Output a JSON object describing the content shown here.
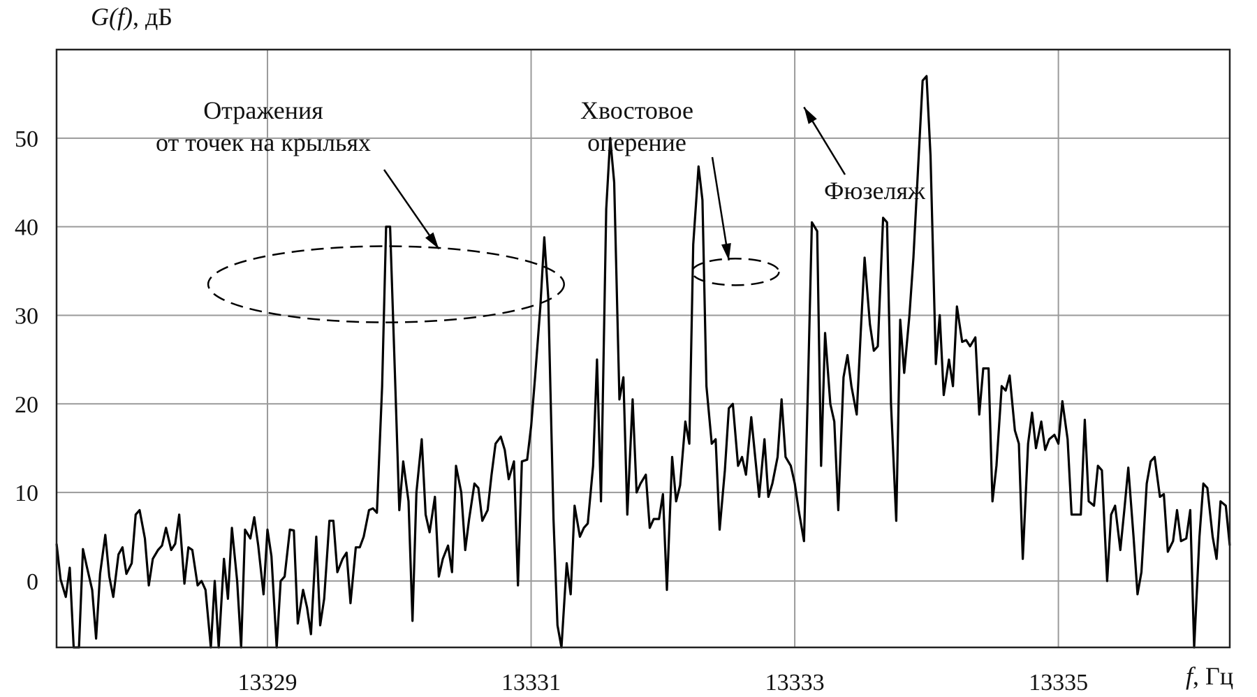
{
  "chart_data": {
    "type": "line",
    "title": "",
    "ylabel_italic": "G(f)",
    "ylabel_rest": ", дБ",
    "xlabel_italic": "f",
    "xlabel_rest": ",  Гц",
    "xlim": [
      13327.4,
      13336.3
    ],
    "ylim": [
      -7.5,
      60
    ],
    "x_ticks": [
      13329,
      13331,
      13333,
      13335
    ],
    "x_tick_labels": [
      "13329",
      "13331",
      "13333",
      "13335"
    ],
    "x_grid_at": [
      13329,
      13331,
      13333,
      13335
    ],
    "y_ticks": [
      0,
      10,
      20,
      30,
      40,
      50
    ],
    "y_tick_labels": [
      "0",
      "10",
      "20",
      "30",
      "40",
      "50"
    ],
    "grid": true,
    "annotations": [
      {
        "id": "wings",
        "lines": [
          "Отражения",
          "от точек на крыльях"
        ]
      },
      {
        "id": "tail",
        "lines": [
          "Хвостовое",
          "оперение"
        ]
      },
      {
        "id": "fuselage",
        "lines": [
          "Фюзеляж"
        ]
      }
    ],
    "annotation_targets": {
      "wings": {
        "x": 13330.3,
        "y": 37.5
      },
      "tail": {
        "x": 13332.5,
        "y": 36.2
      },
      "fuselage": {
        "x": 13333.07,
        "y": 53.5
      }
    },
    "highlight_ellipses": [
      {
        "id": "wings-ellipse",
        "cx": 13329.9,
        "cy": 33.5,
        "rx": 1.35,
        "ry": 4.3
      },
      {
        "id": "tail-ellipse",
        "cx": 13332.55,
        "cy": 34.9,
        "rx": 0.33,
        "ry": 1.5
      }
    ],
    "series": [
      {
        "values": [
          [
            13327.4,
            4.2
          ],
          [
            13327.43,
            0.2
          ],
          [
            13327.47,
            -1.8
          ],
          [
            13327.5,
            1.5
          ],
          [
            13327.53,
            -7.5
          ],
          [
            13327.57,
            -7.5
          ],
          [
            13327.6,
            3.6
          ],
          [
            13327.63,
            1.6
          ],
          [
            13327.67,
            -1.0
          ],
          [
            13327.7,
            -6.5
          ],
          [
            13327.73,
            0.8
          ],
          [
            13327.77,
            5.2
          ],
          [
            13327.8,
            0.5
          ],
          [
            13327.83,
            -1.8
          ],
          [
            13327.87,
            3.0
          ],
          [
            13327.9,
            3.8
          ],
          [
            13327.93,
            0.8
          ],
          [
            13327.97,
            2.0
          ],
          [
            13328.0,
            7.5
          ],
          [
            13328.03,
            8.0
          ],
          [
            13328.07,
            4.8
          ],
          [
            13328.1,
            -0.5
          ],
          [
            13328.13,
            2.5
          ],
          [
            13328.17,
            3.5
          ],
          [
            13328.2,
            4.0
          ],
          [
            13328.23,
            6.0
          ],
          [
            13328.27,
            3.5
          ],
          [
            13328.3,
            4.2
          ],
          [
            13328.33,
            7.5
          ],
          [
            13328.37,
            -0.3
          ],
          [
            13328.4,
            3.8
          ],
          [
            13328.43,
            3.5
          ],
          [
            13328.47,
            -0.5
          ],
          [
            13328.5,
            0.0
          ],
          [
            13328.53,
            -1.0
          ],
          [
            13328.57,
            -7.5
          ],
          [
            13328.6,
            0.0
          ],
          [
            13328.63,
            -7.5
          ],
          [
            13328.67,
            2.5
          ],
          [
            13328.7,
            -2.0
          ],
          [
            13328.73,
            6.0
          ],
          [
            13328.77,
            0.0
          ],
          [
            13328.8,
            -7.5
          ],
          [
            13328.83,
            5.8
          ],
          [
            13328.87,
            4.8
          ],
          [
            13328.9,
            7.2
          ],
          [
            13328.93,
            4.0
          ],
          [
            13328.97,
            -1.5
          ],
          [
            13329.0,
            5.8
          ],
          [
            13329.03,
            2.8
          ],
          [
            13329.07,
            -7.5
          ],
          [
            13329.1,
            0.0
          ],
          [
            13329.13,
            0.5
          ],
          [
            13329.17,
            5.8
          ],
          [
            13329.2,
            5.7
          ],
          [
            13329.23,
            -4.8
          ],
          [
            13329.27,
            -1.0
          ],
          [
            13329.3,
            -3.0
          ],
          [
            13329.33,
            -6.0
          ],
          [
            13329.37,
            5.0
          ],
          [
            13329.4,
            -5.0
          ],
          [
            13329.43,
            -2.0
          ],
          [
            13329.47,
            6.8
          ],
          [
            13329.5,
            6.8
          ],
          [
            13329.53,
            1.0
          ],
          [
            13329.57,
            2.5
          ],
          [
            13329.6,
            3.2
          ],
          [
            13329.63,
            -2.5
          ],
          [
            13329.67,
            3.8
          ],
          [
            13329.7,
            3.8
          ],
          [
            13329.73,
            5.0
          ],
          [
            13329.77,
            8.0
          ],
          [
            13329.8,
            8.2
          ],
          [
            13329.83,
            7.7
          ],
          [
            13329.87,
            22.0
          ],
          [
            13329.9,
            40.0
          ],
          [
            13329.93,
            40.0
          ],
          [
            13329.97,
            22.0
          ],
          [
            13330.0,
            8.0
          ],
          [
            13330.03,
            13.5
          ],
          [
            13330.07,
            9.0
          ],
          [
            13330.1,
            -4.5
          ],
          [
            13330.13,
            10.0
          ],
          [
            13330.17,
            16.0
          ],
          [
            13330.2,
            7.5
          ],
          [
            13330.23,
            5.5
          ],
          [
            13330.27,
            9.5
          ],
          [
            13330.3,
            0.5
          ],
          [
            13330.33,
            2.5
          ],
          [
            13330.37,
            4.0
          ],
          [
            13330.4,
            1.0
          ],
          [
            13330.43,
            13.0
          ],
          [
            13330.47,
            10.0
          ],
          [
            13330.5,
            3.5
          ],
          [
            13330.53,
            7.0
          ],
          [
            13330.57,
            11.0
          ],
          [
            13330.6,
            10.5
          ],
          [
            13330.63,
            6.8
          ],
          [
            13330.67,
            8.0
          ],
          [
            13330.7,
            12.0
          ],
          [
            13330.73,
            15.5
          ],
          [
            13330.77,
            16.3
          ],
          [
            13330.8,
            14.8
          ],
          [
            13330.83,
            11.5
          ],
          [
            13330.87,
            13.5
          ],
          [
            13330.9,
            -0.5
          ],
          [
            13330.93,
            13.5
          ],
          [
            13330.97,
            13.7
          ],
          [
            13331.0,
            17.5
          ],
          [
            13331.03,
            23.0
          ],
          [
            13331.07,
            31.0
          ],
          [
            13331.1,
            38.8
          ],
          [
            13331.13,
            32.0
          ],
          [
            13331.17,
            7.0
          ],
          [
            13331.2,
            -5.0
          ],
          [
            13331.23,
            -7.5
          ],
          [
            13331.27,
            2.0
          ],
          [
            13331.3,
            -1.5
          ],
          [
            13331.33,
            8.5
          ],
          [
            13331.37,
            5.0
          ],
          [
            13331.4,
            6.0
          ],
          [
            13331.43,
            6.5
          ],
          [
            13331.47,
            13.0
          ],
          [
            13331.5,
            25.0
          ],
          [
            13331.53,
            9.0
          ],
          [
            13331.57,
            42.0
          ],
          [
            13331.6,
            50.0
          ],
          [
            13331.63,
            45.0
          ],
          [
            13331.67,
            20.5
          ],
          [
            13331.7,
            23.0
          ],
          [
            13331.73,
            7.5
          ],
          [
            13331.77,
            20.5
          ],
          [
            13331.8,
            10.0
          ],
          [
            13331.83,
            11.0
          ],
          [
            13331.87,
            12.0
          ],
          [
            13331.9,
            6.0
          ],
          [
            13331.93,
            7.0
          ],
          [
            13331.97,
            7.0
          ],
          [
            13332.0,
            9.8
          ],
          [
            13332.03,
            -1.0
          ],
          [
            13332.07,
            14.0
          ],
          [
            13332.1,
            9.0
          ],
          [
            13332.13,
            10.8
          ],
          [
            13332.17,
            18.0
          ],
          [
            13332.2,
            15.5
          ],
          [
            13332.23,
            38.0
          ],
          [
            13332.27,
            46.8
          ],
          [
            13332.3,
            43.0
          ],
          [
            13332.33,
            22.0
          ],
          [
            13332.37,
            15.5
          ],
          [
            13332.4,
            16.0
          ],
          [
            13332.43,
            5.8
          ],
          [
            13332.47,
            12.5
          ],
          [
            13332.5,
            19.5
          ],
          [
            13332.53,
            20.0
          ],
          [
            13332.57,
            13.0
          ],
          [
            13332.6,
            14.0
          ],
          [
            13332.63,
            12.0
          ],
          [
            13332.67,
            18.5
          ],
          [
            13332.7,
            14.0
          ],
          [
            13332.73,
            9.5
          ],
          [
            13332.77,
            16.0
          ],
          [
            13332.8,
            9.5
          ],
          [
            13332.83,
            11.0
          ],
          [
            13332.87,
            14.0
          ],
          [
            13332.9,
            20.5
          ],
          [
            13332.93,
            14.0
          ],
          [
            13332.97,
            13.0
          ],
          [
            13333.0,
            11.0
          ],
          [
            13333.03,
            8.0
          ],
          [
            13333.07,
            4.5
          ],
          [
            13333.1,
            22.0
          ],
          [
            13333.13,
            40.5
          ],
          [
            13333.17,
            39.5
          ],
          [
            13333.2,
            13.0
          ],
          [
            13333.23,
            28.0
          ],
          [
            13333.27,
            20.0
          ],
          [
            13333.3,
            18.0
          ],
          [
            13333.33,
            8.0
          ],
          [
            13333.37,
            23.0
          ],
          [
            13333.4,
            25.5
          ],
          [
            13333.43,
            22.0
          ],
          [
            13333.47,
            18.8
          ],
          [
            13333.5,
            28.0
          ],
          [
            13333.53,
            36.5
          ],
          [
            13333.57,
            29.0
          ],
          [
            13333.6,
            26.0
          ],
          [
            13333.63,
            26.5
          ],
          [
            13333.67,
            41.0
          ],
          [
            13333.7,
            40.5
          ],
          [
            13333.73,
            20.0
          ],
          [
            13333.77,
            6.8
          ],
          [
            13333.8,
            29.5
          ],
          [
            13333.83,
            23.5
          ],
          [
            13333.87,
            30.0
          ],
          [
            13333.9,
            36.5
          ],
          [
            13333.93,
            45.0
          ],
          [
            13333.97,
            56.5
          ],
          [
            13334.0,
            57.0
          ],
          [
            13334.03,
            48.0
          ],
          [
            13334.07,
            24.5
          ],
          [
            13334.1,
            30.0
          ],
          [
            13334.13,
            21.0
          ],
          [
            13334.17,
            25.0
          ],
          [
            13334.2,
            22.0
          ],
          [
            13334.23,
            31.0
          ],
          [
            13334.27,
            27.0
          ],
          [
            13334.3,
            27.2
          ],
          [
            13334.33,
            26.5
          ],
          [
            13334.37,
            27.5
          ],
          [
            13334.4,
            18.8
          ],
          [
            13334.43,
            24.0
          ],
          [
            13334.47,
            24.0
          ],
          [
            13334.5,
            9.0
          ],
          [
            13334.53,
            13.0
          ],
          [
            13334.57,
            22.0
          ],
          [
            13334.6,
            21.5
          ],
          [
            13334.63,
            23.2
          ],
          [
            13334.67,
            17.0
          ],
          [
            13334.7,
            15.5
          ],
          [
            13334.73,
            2.5
          ],
          [
            13334.77,
            15.5
          ],
          [
            13334.8,
            19.0
          ],
          [
            13334.83,
            15.0
          ],
          [
            13334.87,
            18.0
          ],
          [
            13334.9,
            14.8
          ],
          [
            13334.93,
            16.0
          ],
          [
            13334.97,
            16.5
          ],
          [
            13335.0,
            15.5
          ],
          [
            13335.03,
            20.3
          ],
          [
            13335.07,
            16.0
          ],
          [
            13335.1,
            7.5
          ],
          [
            13335.13,
            7.5
          ],
          [
            13335.17,
            7.5
          ],
          [
            13335.2,
            18.2
          ],
          [
            13335.23,
            9.0
          ],
          [
            13335.27,
            8.5
          ],
          [
            13335.3,
            13.0
          ],
          [
            13335.33,
            12.5
          ],
          [
            13335.37,
            0.0
          ],
          [
            13335.4,
            7.5
          ],
          [
            13335.43,
            8.5
          ],
          [
            13335.47,
            3.5
          ],
          [
            13335.5,
            8.0
          ],
          [
            13335.53,
            12.8
          ],
          [
            13335.57,
            5.0
          ],
          [
            13335.6,
            -1.5
          ],
          [
            13335.63,
            1.0
          ],
          [
            13335.67,
            11.0
          ],
          [
            13335.7,
            13.5
          ],
          [
            13335.73,
            14.0
          ],
          [
            13335.77,
            9.5
          ],
          [
            13335.8,
            9.8
          ],
          [
            13335.83,
            3.3
          ],
          [
            13335.87,
            4.5
          ],
          [
            13335.9,
            8.0
          ],
          [
            13335.93,
            4.5
          ],
          [
            13335.97,
            4.8
          ],
          [
            13336.0,
            8.0
          ],
          [
            13336.03,
            -7.5
          ],
          [
            13336.07,
            5.0
          ],
          [
            13336.1,
            11.0
          ],
          [
            13336.13,
            10.5
          ],
          [
            13336.17,
            5.0
          ],
          [
            13336.2,
            2.5
          ],
          [
            13336.23,
            9.0
          ],
          [
            13336.27,
            8.5
          ],
          [
            13336.3,
            4.0
          ]
        ]
      }
    ]
  }
}
